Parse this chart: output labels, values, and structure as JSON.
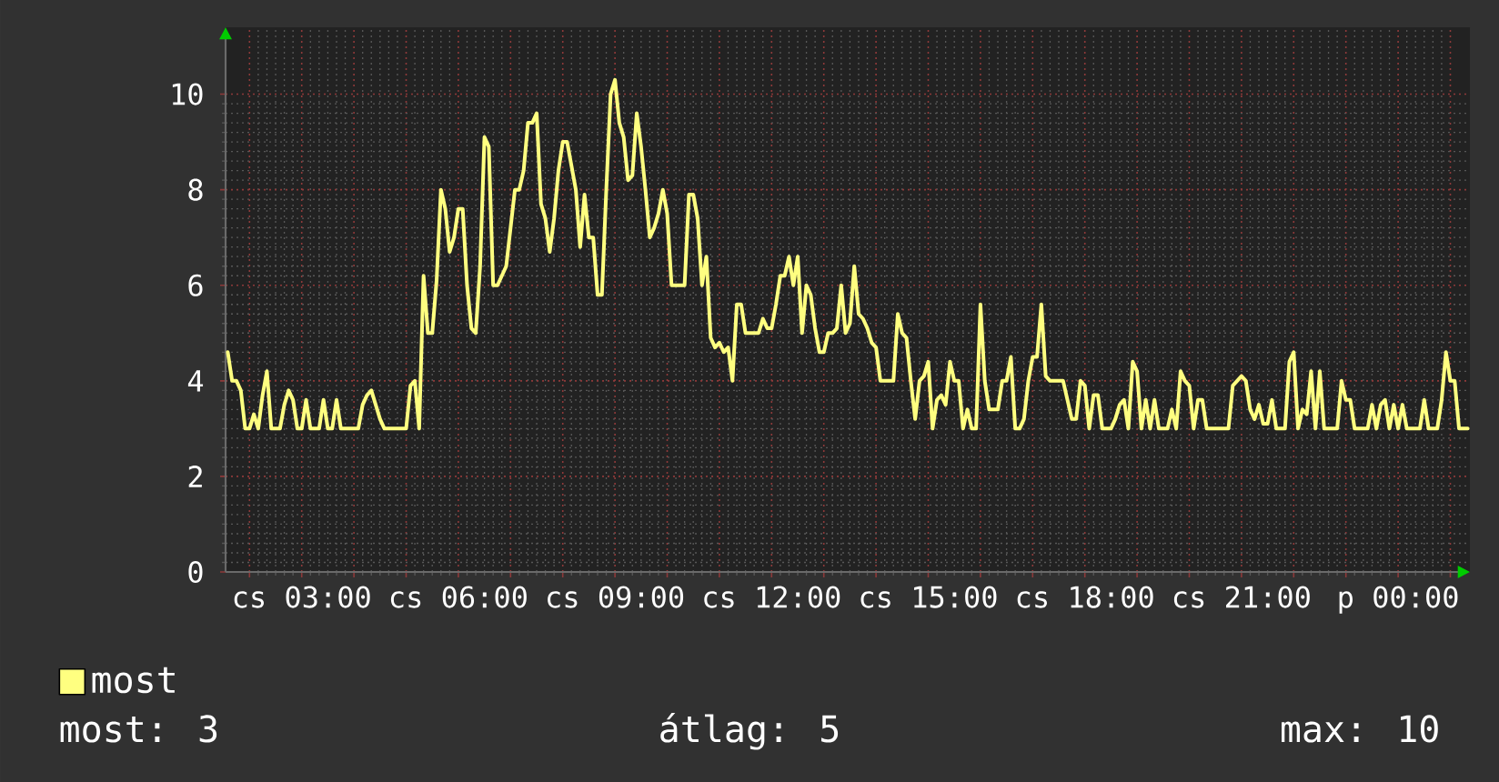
{
  "chart_data": {
    "type": "line",
    "categories": [
      null,
      null,
      null,
      null,
      null,
      null,
      null,
      null,
      null,
      null,
      null,
      null,
      null,
      null,
      null,
      null,
      null,
      "cs 03:00",
      null,
      null,
      null,
      null,
      null,
      null,
      null,
      null,
      null,
      null,
      null,
      null,
      null,
      null,
      null,
      null,
      null,
      null,
      null,
      null,
      null,
      null,
      null,
      null,
      null,
      null,
      null,
      null,
      null,
      null,
      null,
      null,
      null,
      null,
      null,
      "cs 06:00",
      null,
      null,
      null,
      null,
      null,
      null,
      null,
      null,
      null,
      null,
      null,
      null,
      null,
      null,
      null,
      null,
      null,
      null,
      null,
      null,
      null,
      null,
      null,
      null,
      null,
      null,
      null,
      null,
      null,
      null,
      null,
      null,
      null,
      null,
      null,
      "cs 09:00",
      null,
      null,
      null,
      null,
      null,
      null,
      null,
      null,
      null,
      null,
      null,
      null,
      null,
      null,
      null,
      null,
      null,
      null,
      null,
      null,
      null,
      null,
      null,
      null,
      null,
      null,
      null,
      null,
      null,
      null,
      null,
      null,
      null,
      null,
      null,
      "cs 12:00",
      null,
      null,
      null,
      null,
      null,
      null,
      null,
      null,
      null,
      null,
      null,
      null,
      null,
      null,
      null,
      null,
      null,
      null,
      null,
      null,
      null,
      null,
      null,
      null,
      null,
      null,
      null,
      null,
      null,
      null,
      null,
      null,
      null,
      null,
      null,
      "cs 15:00",
      null,
      null,
      null,
      null,
      null,
      null,
      null,
      null,
      null,
      null,
      null,
      null,
      null,
      null,
      null,
      null,
      null,
      null,
      null,
      null,
      null,
      null,
      null,
      null,
      null,
      null,
      null,
      null,
      null,
      null,
      null,
      null,
      null,
      null,
      null,
      "cs 18:00",
      null,
      null,
      null,
      null,
      null,
      null,
      null,
      null,
      null,
      null,
      null,
      null,
      null,
      null,
      null,
      null,
      null,
      null,
      null,
      null,
      null,
      null,
      null,
      null,
      null,
      null,
      null,
      null,
      null,
      null,
      null,
      null,
      null,
      null,
      null,
      "cs 21:00",
      null,
      null,
      null,
      null,
      null,
      null,
      null,
      null,
      null,
      null,
      null,
      null,
      null,
      null,
      null,
      null,
      null,
      null,
      null,
      null,
      null,
      null,
      null,
      null,
      null,
      null,
      null,
      null,
      null,
      null,
      null,
      null,
      null,
      null,
      null,
      "p 00:00",
      null,
      null,
      null,
      null,
      null,
      null,
      null,
      null,
      null,
      null,
      null,
      null,
      null,
      null,
      null,
      null
    ],
    "series": [
      {
        "name": "most",
        "color": "#ffff80",
        "values": [
          4.6,
          4.0,
          4.0,
          3.8,
          3.0,
          3.0,
          3.3,
          3.0,
          3.7,
          4.2,
          3.0,
          3.0,
          3.0,
          3.5,
          3.8,
          3.6,
          3.0,
          3.0,
          3.6,
          3.0,
          3.0,
          3.0,
          3.6,
          3.0,
          3.0,
          3.6,
          3.0,
          3.0,
          3.0,
          3.0,
          3.0,
          3.5,
          3.7,
          3.8,
          3.5,
          3.2,
          3.0,
          3.0,
          3.0,
          3.0,
          3.0,
          3.0,
          3.9,
          4.0,
          3.0,
          6.2,
          5.0,
          5.0,
          6.1,
          8.0,
          7.6,
          6.7,
          7.0,
          7.6,
          7.6,
          6.0,
          5.1,
          5.0,
          6.4,
          9.1,
          8.9,
          6.0,
          6.0,
          6.2,
          6.4,
          7.2,
          8.0,
          8.0,
          8.4,
          9.4,
          9.4,
          9.6,
          7.7,
          7.4,
          6.7,
          7.4,
          8.4,
          9.0,
          9.0,
          8.5,
          8.0,
          6.8,
          7.9,
          7.0,
          7.0,
          5.8,
          5.8,
          8.0,
          10.0,
          10.3,
          9.4,
          9.1,
          8.2,
          8.3,
          9.6,
          8.9,
          8.0,
          7.0,
          7.2,
          7.5,
          8.0,
          7.5,
          6.0,
          6.0,
          6.0,
          6.0,
          7.9,
          7.9,
          7.4,
          6.0,
          6.6,
          4.9,
          4.7,
          4.8,
          4.6,
          4.7,
          4.0,
          5.6,
          5.6,
          5.0,
          5.0,
          5.0,
          5.0,
          5.3,
          5.1,
          5.1,
          5.6,
          6.2,
          6.2,
          6.6,
          6.0,
          6.6,
          5.0,
          6.0,
          5.8,
          5.1,
          4.6,
          4.6,
          5.0,
          5.0,
          5.1,
          6.0,
          5.0,
          5.2,
          6.4,
          5.4,
          5.3,
          5.1,
          4.8,
          4.7,
          4.0,
          4.0,
          4.0,
          4.0,
          5.4,
          5.0,
          4.9,
          4.0,
          3.2,
          4.0,
          4.1,
          4.4,
          3.0,
          3.6,
          3.7,
          3.5,
          4.4,
          4.0,
          4.0,
          3.0,
          3.4,
          3.0,
          3.0,
          5.6,
          4.0,
          3.4,
          3.4,
          3.4,
          4.0,
          4.0,
          4.5,
          3.0,
          3.0,
          3.2,
          4.0,
          4.5,
          4.5,
          5.6,
          4.1,
          4.0,
          4.0,
          4.0,
          4.0,
          3.6,
          3.2,
          3.2,
          4.0,
          3.9,
          3.0,
          3.7,
          3.7,
          3.0,
          3.0,
          3.0,
          3.2,
          3.5,
          3.6,
          3.0,
          4.4,
          4.2,
          3.0,
          3.6,
          3.0,
          3.6,
          3.0,
          3.0,
          3.0,
          3.4,
          3.0,
          4.2,
          4.0,
          3.9,
          3.0,
          3.6,
          3.6,
          3.0,
          3.0,
          3.0,
          3.0,
          3.0,
          3.0,
          3.9,
          4.0,
          4.1,
          4.0,
          3.4,
          3.2,
          3.5,
          3.1,
          3.1,
          3.6,
          3.0,
          3.0,
          3.0,
          4.4,
          4.6,
          3.0,
          3.4,
          3.3,
          4.2,
          3.0,
          4.2,
          3.0,
          3.0,
          3.0,
          3.0,
          4.0,
          3.6,
          3.6,
          3.0,
          3.0,
          3.0,
          3.0,
          3.5,
          3.0,
          3.5,
          3.6,
          3.0,
          3.5,
          3.0,
          3.5,
          3.0,
          3.0,
          3.0,
          3.0,
          3.6,
          3.0,
          3.0,
          3.0,
          3.6,
          4.6,
          4.0,
          4.0,
          3.0,
          3.0,
          3.0
        ]
      }
    ],
    "ylim": [
      0,
      11.4
    ],
    "yticks": [
      0,
      2,
      4,
      6,
      8,
      10
    ],
    "grid": true,
    "legend": "bottom left",
    "annotations": [
      "most: 3",
      "átlag: 5",
      "max: 10"
    ]
  }
}
